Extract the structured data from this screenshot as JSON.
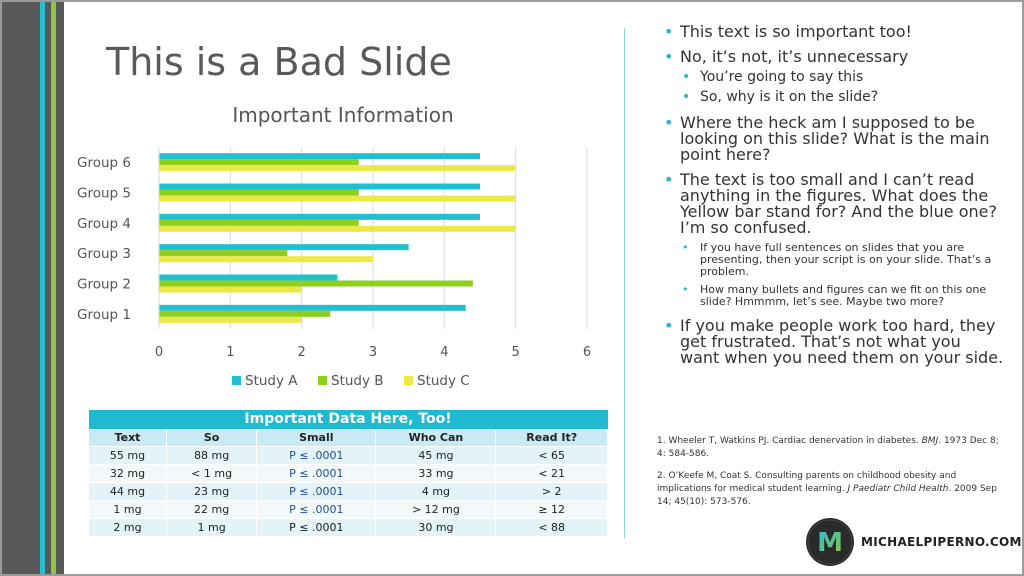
{
  "slide": {
    "title": "This is a Bad Slide"
  },
  "colors": {
    "accent_cyan": "#1fbad0",
    "accent_green": "#8dc63f",
    "accent_yellow": "#ede84a",
    "sidebar_gray": "#595959"
  },
  "chart_data": {
    "type": "bar",
    "orientation": "horizontal",
    "title": "Important Information",
    "categories": [
      "Group 1",
      "Group 2",
      "Group 3",
      "Group 4",
      "Group 5",
      "Group 6"
    ],
    "series": [
      {
        "name": "Study A",
        "color": "#22bfd1",
        "values": [
          4.3,
          2.5,
          3.5,
          4.5,
          4.5,
          4.5
        ]
      },
      {
        "name": "Study B",
        "color": "#8ecf1e",
        "values": [
          2.4,
          4.4,
          1.8,
          2.8,
          2.8,
          2.8
        ]
      },
      {
        "name": "Study C",
        "color": "#ede84a",
        "values": [
          2.0,
          2.0,
          3.0,
          5.0,
          5.0,
          5.0
        ]
      }
    ],
    "xlim": [
      0,
      6
    ],
    "xticks": [
      "0",
      "1",
      "2",
      "3",
      "4",
      "5",
      "6"
    ],
    "grid": true,
    "legend": "bottom"
  },
  "table": {
    "caption": "Important Data Here, Too!",
    "headers": [
      "Text",
      "So",
      "Small",
      "Who Can",
      "Read It?"
    ],
    "rows": [
      [
        "55 mg",
        "88 mg",
        "P ≤ .0001",
        "45 mg",
        "< 65"
      ],
      [
        "32 mg",
        "< 1 mg",
        "P ≤ .0001",
        "33 mg",
        "< 21"
      ],
      [
        "44 mg",
        "23 mg",
        "P ≤ .0001",
        "4 mg",
        "> 2"
      ],
      [
        "1 mg",
        "22 mg",
        "P ≤ .0001",
        "> 12 mg",
        "≥ 12"
      ],
      [
        "2 mg",
        "1 mg",
        "P ≤ .0001",
        "30 mg",
        "< 88"
      ]
    ]
  },
  "bullets": {
    "b1": "This text is so important too!",
    "b2": "No, it’s not, it’s unnecessary",
    "b2a": "You’re going to say this",
    "b2b": "So, why is it on the slide?",
    "b3": "Where the heck am I supposed to be looking on this slide? What is the main point here?",
    "b4": "The text is too small and I can’t read anything in the figures. What does the Yellow bar stand for? And the blue one? I’m so confused.",
    "b4a": "If you have full sentences on slides that you are presenting, then your script is on your slide. That’s a problem.",
    "b4b": "How many bullets and figures can we fit on this one slide? Hmmmm, let’s see. Maybe two more?",
    "b5": "If you make people work too hard, they get frustrated. That’s not what you want when you need them on your side."
  },
  "references": {
    "r1_text": "1.  Wheeler T, Watkins PJ. Cardiac denervation in diabetes. ",
    "r1_journal": "BMJ",
    "r1_tail": ". 1973 Dec 8; 4: 584-586.",
    "r2_text": "2. O’Keefe M, Coat S. Consulting parents on childhood obesity and implications for medical student learning. ",
    "r2_journal": "J Paediatr Child Health",
    "r2_tail": ". 2009 Sep 14; 45(10): 573-576."
  },
  "brand": {
    "logo_letter": "M",
    "name": "MICHAELPIPERNO.COM"
  }
}
